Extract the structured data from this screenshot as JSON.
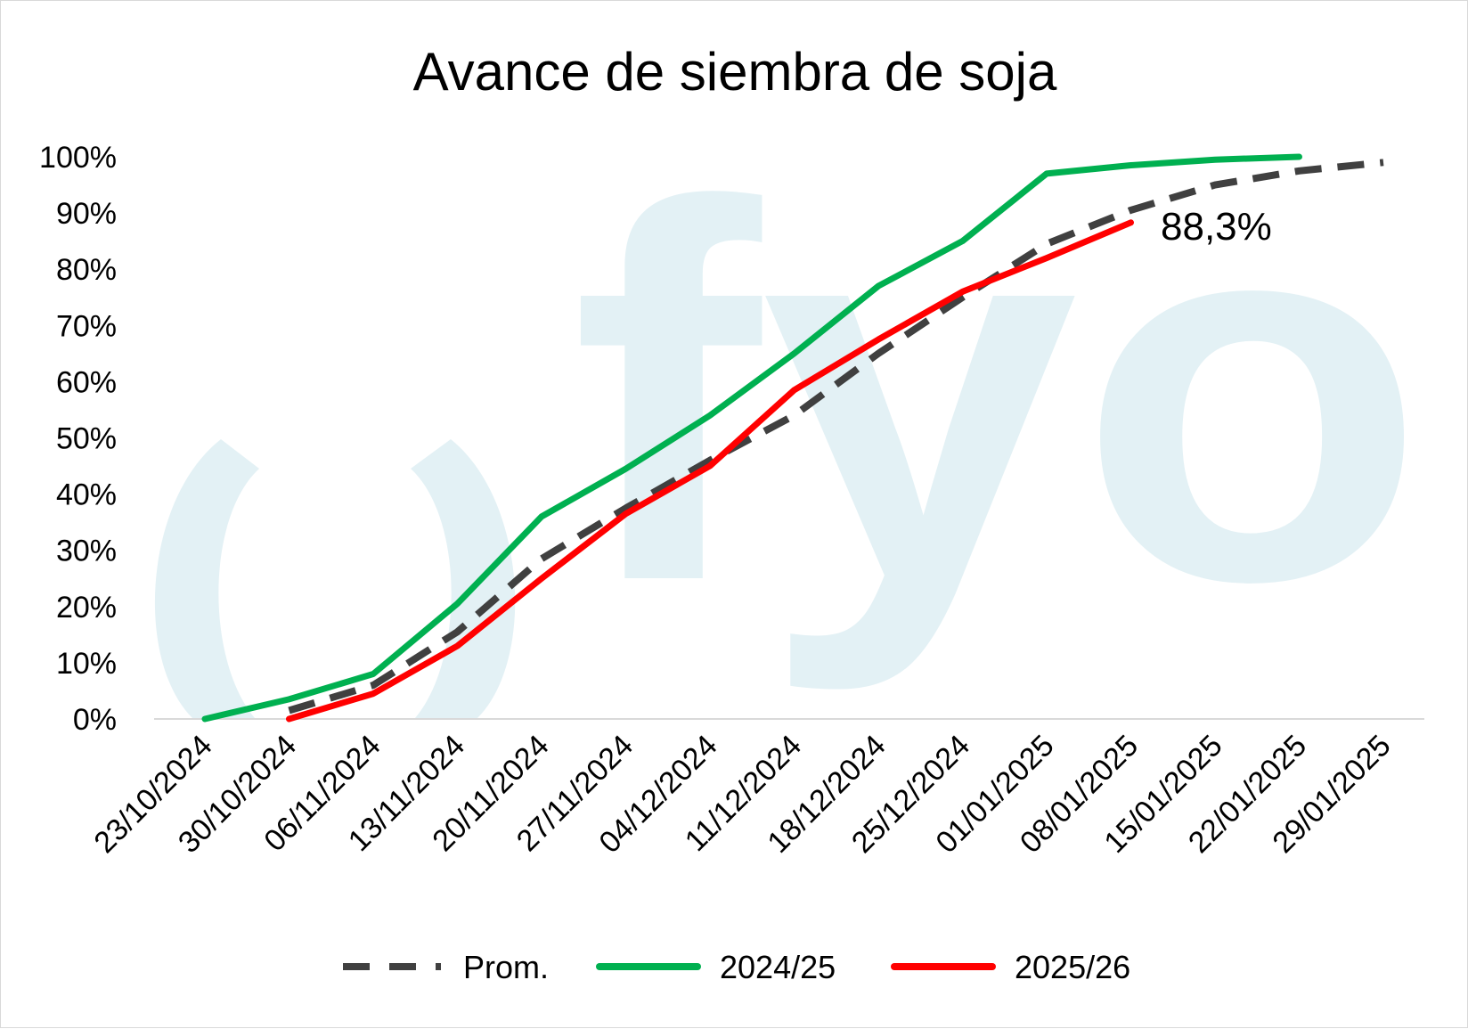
{
  "chart_data": {
    "type": "line",
    "title": "Avance de siembra de soja",
    "xlabel": "",
    "ylabel": "",
    "ylim": [
      0,
      100
    ],
    "y_ticks": [
      "0%",
      "10%",
      "20%",
      "30%",
      "40%",
      "50%",
      "60%",
      "70%",
      "80%",
      "90%",
      "100%"
    ],
    "categories": [
      "23/10/2024",
      "30/10/2024",
      "06/11/2024",
      "13/11/2024",
      "20/11/2024",
      "27/11/2024",
      "04/12/2024",
      "11/12/2024",
      "18/12/2024",
      "25/12/2024",
      "01/01/2025",
      "08/01/2025",
      "15/01/2025",
      "22/01/2025",
      "29/01/2025"
    ],
    "series": [
      {
        "name": "Prom.",
        "color": "#404040",
        "style": "dashed",
        "values": [
          null,
          1.5,
          6,
          15.5,
          28.5,
          37.5,
          46,
          54,
          65,
          75,
          84.5,
          90.5,
          95,
          97.5,
          99
        ]
      },
      {
        "name": "2024/25",
        "color": "#00b050",
        "style": "solid",
        "values": [
          0,
          3.5,
          8,
          20.5,
          36,
          44.5,
          54,
          65,
          77,
          85,
          97,
          98.5,
          99.5,
          100,
          null
        ]
      },
      {
        "name": "2025/26",
        "color": "#ff0000",
        "style": "solid",
        "values": [
          null,
          0,
          4.5,
          13,
          25,
          36.5,
          45,
          58.5,
          67.5,
          76,
          82,
          88.3,
          null,
          null,
          null
        ]
      }
    ],
    "annotations": [
      {
        "text": "88,3%",
        "series": "2025/26",
        "category": "08/01/2025",
        "value": 88.3
      }
    ],
    "legend": {
      "position": "bottom",
      "items": [
        "Prom.",
        "2024/25",
        "2025/26"
      ]
    },
    "grid": false,
    "watermark": "fyo",
    "watermark_color": "#e3f1f5"
  }
}
